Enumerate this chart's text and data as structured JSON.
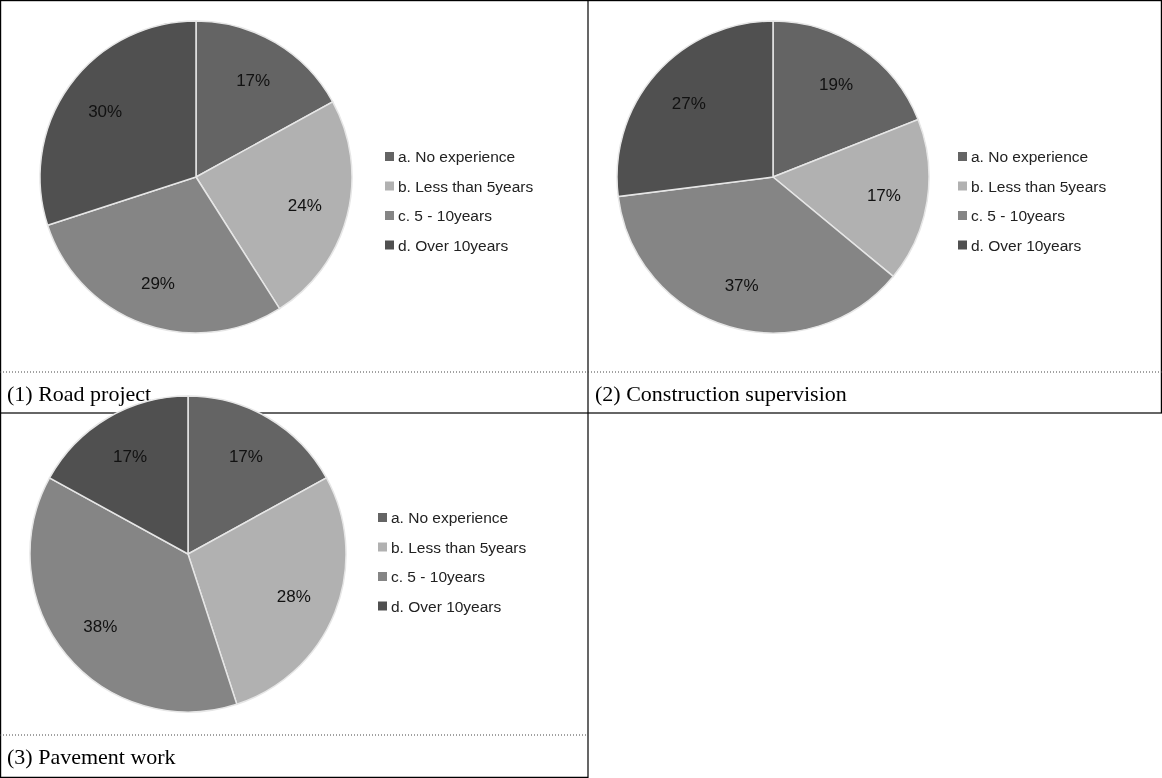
{
  "chart_data": [
    {
      "type": "pie",
      "title": "(1) Road project",
      "categories": [
        "a. No experience",
        "b. Less than 5years",
        "c. 5 - 10years",
        "d. Over 10years"
      ],
      "values": [
        17,
        24,
        29,
        30
      ],
      "value_labels": [
        "17%",
        "24%",
        "29%",
        "30%"
      ],
      "colors": [
        "#646464",
        "#b1b1b1",
        "#858585",
        "#505050"
      ],
      "legend": "right"
    },
    {
      "type": "pie",
      "title": "(2) Construction supervision",
      "categories": [
        "a. No experience",
        "b. Less than 5years",
        "c. 5 - 10years",
        "d. Over 10years"
      ],
      "values": [
        19,
        17,
        37,
        27
      ],
      "value_labels": [
        "19%",
        "17%",
        "37%",
        "27%"
      ],
      "colors": [
        "#646464",
        "#b1b1b1",
        "#858585",
        "#505050"
      ],
      "legend": "right"
    },
    {
      "type": "pie",
      "title": "(3) Pavement work",
      "categories": [
        "a. No experience",
        "b. Less than 5years",
        "c. 5 - 10years",
        "d. Over 10years"
      ],
      "values": [
        17,
        28,
        38,
        17
      ],
      "value_labels": [
        "17%",
        "28%",
        "38%",
        "17%"
      ],
      "colors": [
        "#646464",
        "#b1b1b1",
        "#858585",
        "#505050"
      ],
      "legend": "right"
    }
  ]
}
